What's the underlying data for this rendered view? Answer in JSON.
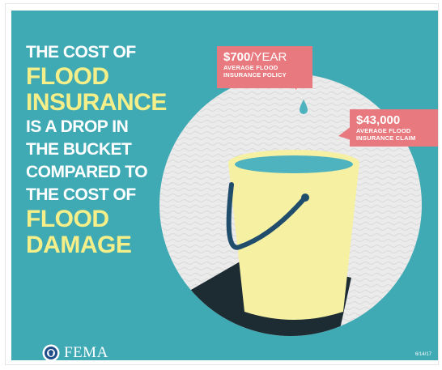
{
  "headline": {
    "line1": "THE COST OF",
    "line2": "FLOOD",
    "line3": "INSURANCE",
    "line4": "IS A DROP IN",
    "line5": "THE BUCKET",
    "line6": "COMPARED TO",
    "line7": "THE COST OF",
    "line8": "FLOOD",
    "line9": "DAMAGE"
  },
  "callout_policy": {
    "amount": "$700",
    "per": "/YEAR",
    "line1": "AVERAGE FLOOD",
    "line2": "INSURANCE POLICY"
  },
  "callout_claim": {
    "amount": "$43,000",
    "line1": "AVERAGE FLOOD",
    "line2": "INSURANCE CLAIM"
  },
  "logo": {
    "text": "FEMA"
  },
  "date": "6/14/17",
  "colors": {
    "background": "#3faab4",
    "highlight_text": "#f5ef8a",
    "callout": "#e87a7f",
    "bucket": "#f6f0a3",
    "water": "#4fb3bf",
    "handle": "#1f4d6b"
  }
}
